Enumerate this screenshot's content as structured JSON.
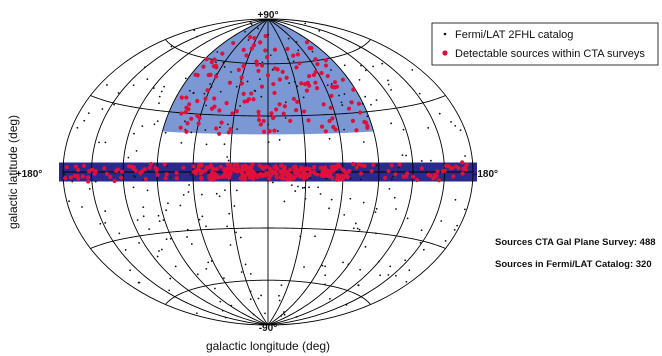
{
  "chart_data": {
    "type": "scatter",
    "projection": "Aitoff / Hammer all-sky, galactic coordinates",
    "xlabel": "galactic longitude (deg)",
    "ylabel": "galactic latitude (deg)",
    "xlim": [
      180,
      -180
    ],
    "ylim": [
      -90,
      90
    ],
    "tick_labels": {
      "top": "+90°",
      "bottom": "-90°",
      "left": "+180°",
      "right": "-180°"
    },
    "grid": true,
    "legend": {
      "position": "top-right",
      "entries": [
        {
          "label": "Fermi/LAT 2FHL catalog",
          "marker": "small black dot"
        },
        {
          "label": "Detectable sources within CTA surveys",
          "marker": "red dot"
        }
      ]
    },
    "annotations": [
      {
        "id": "plane_count",
        "text": "Sources CTA Gal Plane Survey: 488"
      },
      {
        "id": "catalog_count",
        "text": "Sources in Fermi/LAT Catalog: 320"
      }
    ],
    "regions": [
      {
        "name": "extragalactic survey region",
        "color": "#7b98d4",
        "l_range": [
          -90,
          90
        ],
        "b_range": [
          20,
          90
        ]
      },
      {
        "name": "galactic plane survey band",
        "color": "#2a2a8c",
        "l_range": [
          -180,
          180
        ],
        "b_range": [
          -5,
          5
        ]
      }
    ],
    "colors": {
      "fermi_points": "#111111",
      "cta_points": "#e0103a",
      "grid": "#000000"
    }
  }
}
